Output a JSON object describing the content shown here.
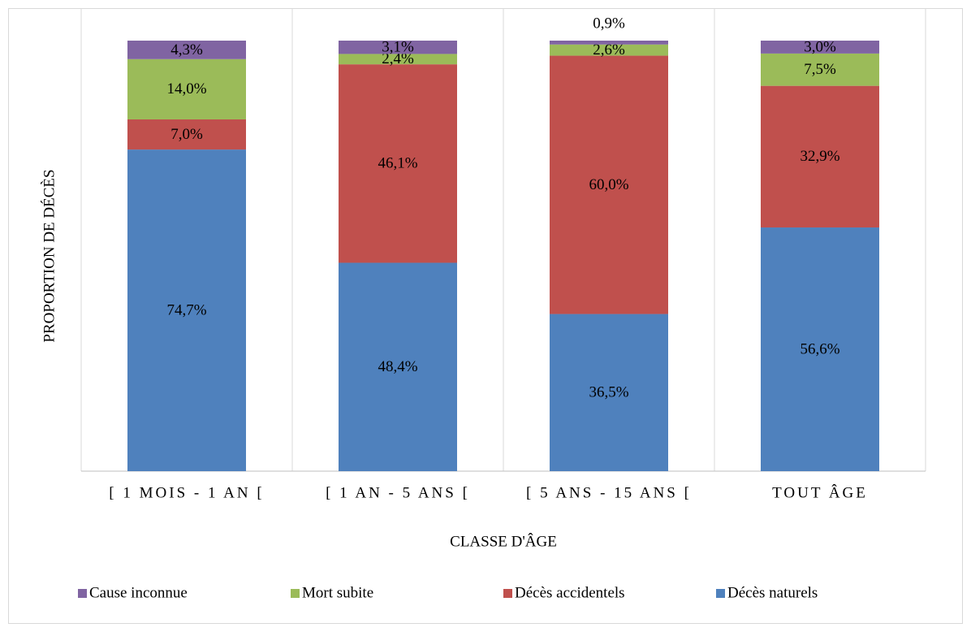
{
  "chart_data": {
    "type": "stacked_bar",
    "categories": [
      "[ 1 MOIS - 1 AN [",
      "[ 1 AN - 5 ANS [",
      "[ 5 ANS - 15 ANS [",
      "TOUT ÂGE"
    ],
    "xlabel": "CLASSE D'ÂGE",
    "ylabel": "PROPORTION DE DÉCÈS",
    "ylim": [
      0,
      100
    ],
    "series": [
      {
        "name": "Décès naturels",
        "color": "#4f81bd",
        "values": [
          74.7,
          48.4,
          36.5,
          56.6
        ],
        "value_labels": [
          "74,7%",
          "48,4%",
          "36,5%",
          "56,6%"
        ]
      },
      {
        "name": "Décès accidentels",
        "color": "#c0504d",
        "values": [
          7.0,
          46.1,
          60.0,
          32.9
        ],
        "value_labels": [
          "7,0%",
          "46,1%",
          "60,0%",
          "32,9%"
        ]
      },
      {
        "name": "Mort subite",
        "color": "#9bbb59",
        "values": [
          14.0,
          2.4,
          2.6,
          7.5
        ],
        "value_labels": [
          "14,0%",
          "2,4%",
          "2,6%",
          "7,5%"
        ]
      },
      {
        "name": "Cause inconnue",
        "color": "#8064a2",
        "values": [
          4.3,
          3.1,
          0.9,
          3.0
        ],
        "value_labels": [
          "4,3%",
          "3,1%",
          "0,9%",
          "3,0%"
        ]
      }
    ]
  }
}
